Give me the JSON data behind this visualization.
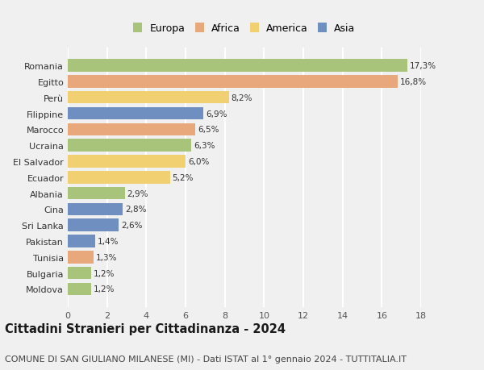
{
  "categories": [
    "Romania",
    "Egitto",
    "Perù",
    "Filippine",
    "Marocco",
    "Ucraina",
    "El Salvador",
    "Ecuador",
    "Albania",
    "Cina",
    "Sri Lanka",
    "Pakistan",
    "Tunisia",
    "Bulgaria",
    "Moldova"
  ],
  "values": [
    17.3,
    16.8,
    8.2,
    6.9,
    6.5,
    6.3,
    6.0,
    5.2,
    2.9,
    2.8,
    2.6,
    1.4,
    1.3,
    1.2,
    1.2
  ],
  "labels": [
    "17,3%",
    "16,8%",
    "8,2%",
    "6,9%",
    "6,5%",
    "6,3%",
    "6,0%",
    "5,2%",
    "2,9%",
    "2,8%",
    "2,6%",
    "1,4%",
    "1,3%",
    "1,2%",
    "1,2%"
  ],
  "continents": [
    "Europa",
    "Africa",
    "America",
    "Asia",
    "Africa",
    "Europa",
    "America",
    "America",
    "Europa",
    "Asia",
    "Asia",
    "Asia",
    "Africa",
    "Europa",
    "Europa"
  ],
  "colors": {
    "Europa": "#a8c47a",
    "Africa": "#e8a87c",
    "America": "#f0d070",
    "Asia": "#6e8fc0"
  },
  "legend_order": [
    "Europa",
    "Africa",
    "America",
    "Asia"
  ],
  "title": "Cittadini Stranieri per Cittadinanza - 2024",
  "subtitle": "COMUNE DI SAN GIULIANO MILANESE (MI) - Dati ISTAT al 1° gennaio 2024 - TUTTITALIA.IT",
  "xlim": [
    0,
    18
  ],
  "xticks": [
    0,
    2,
    4,
    6,
    8,
    10,
    12,
    14,
    16,
    18
  ],
  "background_color": "#f0f0f0",
  "grid_color": "#ffffff",
  "title_fontsize": 10.5,
  "subtitle_fontsize": 8,
  "label_fontsize": 7.5,
  "tick_fontsize": 8,
  "legend_fontsize": 9
}
